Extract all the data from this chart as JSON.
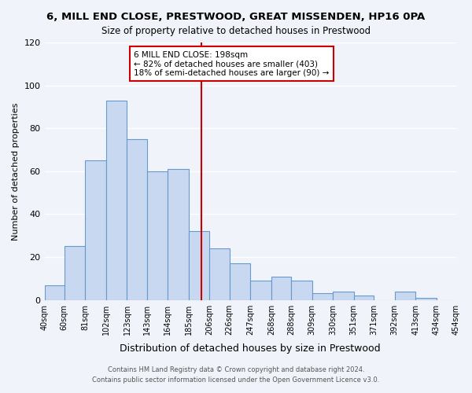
{
  "title": "6, MILL END CLOSE, PRESTWOOD, GREAT MISSENDEN, HP16 0PA",
  "subtitle": "Size of property relative to detached houses in Prestwood",
  "xlabel": "Distribution of detached houses by size in Prestwood",
  "ylabel": "Number of detached properties",
  "bar_color": "#c8d8f0",
  "bar_edge_color": "#6699cc",
  "bins": [
    40,
    60,
    81,
    102,
    123,
    143,
    164,
    185,
    206,
    226,
    247,
    268,
    288,
    309,
    330,
    351,
    371,
    392,
    413,
    434,
    454
  ],
  "values": [
    7,
    25,
    65,
    93,
    75,
    60,
    61,
    32,
    24,
    17,
    9,
    11,
    9,
    3,
    4,
    2,
    0,
    4,
    1,
    0
  ],
  "property_size": 198,
  "vline_color": "#cc0000",
  "annotation_text": "6 MILL END CLOSE: 198sqm\n← 82% of detached houses are smaller (403)\n18% of semi-detached houses are larger (90) →",
  "annotation_box_color": "#ffffff",
  "annotation_box_edge_color": "#cc0000",
  "ylim": [
    0,
    120
  ],
  "yticks": [
    0,
    20,
    40,
    60,
    80,
    100,
    120
  ],
  "xtick_labels": [
    "40sqm",
    "60sqm",
    "81sqm",
    "102sqm",
    "123sqm",
    "143sqm",
    "164sqm",
    "185sqm",
    "206sqm",
    "226sqm",
    "247sqm",
    "268sqm",
    "288sqm",
    "309sqm",
    "330sqm",
    "351sqm",
    "371sqm",
    "392sqm",
    "413sqm",
    "434sqm",
    "454sqm"
  ],
  "footer1": "Contains HM Land Registry data © Crown copyright and database right 2024.",
  "footer2": "Contains public sector information licensed under the Open Government Licence v3.0.",
  "background_color": "#f0f4fa",
  "grid_color": "#ffffff"
}
